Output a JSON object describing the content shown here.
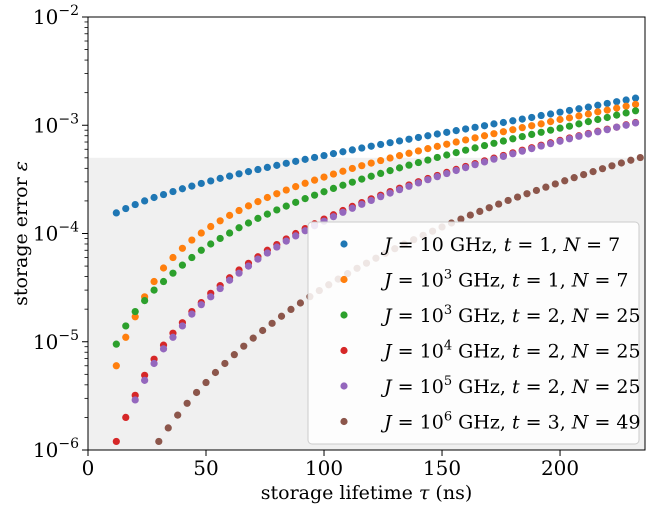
{
  "chart_data": {
    "type": "scatter",
    "xlabel": {
      "pre": "storage lifetime ",
      "sym": "τ",
      "post": " (ns)"
    },
    "ylabel": {
      "pre": "storage error ",
      "sym": "ε"
    },
    "xlim": [
      0,
      236
    ],
    "ylim": [
      1e-06,
      0.01
    ],
    "yscale": "log",
    "x_ticks": [
      0,
      50,
      100,
      150,
      200
    ],
    "y_ticks": [
      {
        "value": 1e-06,
        "base": "10",
        "exp": "−6"
      },
      {
        "value": 1e-05,
        "base": "10",
        "exp": "−5"
      },
      {
        "value": 0.0001,
        "base": "10",
        "exp": "−4"
      },
      {
        "value": 0.001,
        "base": "10",
        "exp": "−3"
      },
      {
        "value": 0.01,
        "base": "10",
        "exp": "−2"
      }
    ],
    "shaded_region": {
      "y_max": 0.0005,
      "color": "#f0f0f0"
    },
    "legend_position": "lower-right",
    "series": [
      {
        "label": {
          "J": "10",
          "Jexp": "",
          "t": "1",
          "N": "7"
        },
        "color": "#1f77b4",
        "x": [
          12,
          16,
          20,
          24,
          28,
          32,
          36,
          40,
          44,
          48,
          52,
          56,
          60,
          64,
          68,
          72,
          76,
          80,
          84,
          88,
          92,
          96,
          100,
          104,
          108,
          112,
          116,
          120,
          124,
          128,
          132,
          136,
          140,
          144,
          148,
          152,
          156,
          160,
          164,
          168,
          172,
          176,
          180,
          184,
          188,
          192,
          196,
          200,
          204,
          208,
          212,
          216,
          220,
          224,
          228,
          232
        ],
        "y": [
          0.000155,
          0.00017,
          0.000185,
          0.0002,
          0.000215,
          0.000229,
          0.000244,
          0.000259,
          0.000274,
          0.00029,
          0.000306,
          0.000323,
          0.000339,
          0.000356,
          0.000373,
          0.00039,
          0.000408,
          0.000426,
          0.000445,
          0.000464,
          0.000484,
          0.000504,
          0.000525,
          0.000547,
          0.000569,
          0.000592,
          0.000616,
          0.00064,
          0.000665,
          0.00069,
          0.000716,
          0.000743,
          0.000771,
          0.0008,
          0.00083,
          0.00086,
          0.000892,
          0.000924,
          0.000957,
          0.00099,
          0.00103,
          0.00106,
          0.0011,
          0.00114,
          0.00118,
          0.00123,
          0.00127,
          0.00132,
          0.00137,
          0.00142,
          0.00147,
          0.00153,
          0.00159,
          0.00165,
          0.00171,
          0.00178
        ]
      },
      {
        "label": {
          "J": "10",
          "Jexp": "3",
          "t": "1",
          "N": "7"
        },
        "color": "#ff7f0e",
        "x": [
          12,
          16,
          20,
          24,
          28,
          32,
          36,
          40,
          44,
          48,
          52,
          56,
          60,
          64,
          68,
          72,
          76,
          80,
          84,
          88,
          92,
          96,
          100,
          104,
          108,
          112,
          116,
          120,
          124,
          128,
          132,
          136,
          140,
          144,
          148,
          152,
          156,
          160,
          164,
          168,
          172,
          176,
          180,
          184,
          188,
          192,
          196,
          200,
          204,
          208,
          212,
          216,
          220,
          224,
          228,
          232
        ],
        "y": [
          6e-06,
          1.1e-05,
          1.7e-05,
          2.6e-05,
          3.6e-05,
          4.8e-05,
          6e-05,
          7.3e-05,
          8.7e-05,
          0.000101,
          0.000116,
          0.000131,
          0.000147,
          0.000163,
          0.00018,
          0.000197,
          0.000215,
          0.000233,
          0.000252,
          0.000271,
          0.000291,
          0.000311,
          0.000332,
          0.000354,
          0.000376,
          0.000399,
          0.000423,
          0.000447,
          0.000472,
          0.000498,
          0.000524,
          0.000551,
          0.000579,
          0.000608,
          0.000638,
          0.000668,
          0.0007,
          0.000732,
          0.000765,
          0.0008,
          0.000836,
          0.000872,
          0.00091,
          0.00095,
          0.00099,
          0.00103,
          0.00108,
          0.00113,
          0.00117,
          0.00122,
          0.00127,
          0.00133,
          0.00138,
          0.00144,
          0.0015,
          0.00156
        ]
      },
      {
        "label": {
          "J": "10",
          "Jexp": "3",
          "t": "2",
          "N": "25"
        },
        "color": "#2ca02c",
        "x": [
          12,
          16,
          20,
          24,
          28,
          32,
          36,
          40,
          44,
          48,
          52,
          56,
          60,
          64,
          68,
          72,
          76,
          80,
          84,
          88,
          92,
          96,
          100,
          104,
          108,
          112,
          116,
          120,
          124,
          128,
          132,
          136,
          140,
          144,
          148,
          152,
          156,
          160,
          164,
          168,
          172,
          176,
          180,
          184,
          188,
          192,
          196,
          200,
          204,
          208,
          212,
          216,
          220,
          224,
          228,
          232
        ],
        "y": [
          9.5e-06,
          1.4e-05,
          1.9e-05,
          2.4e-05,
          3e-05,
          3.6e-05,
          4.3e-05,
          5.1e-05,
          6e-05,
          7e-05,
          8e-05,
          9e-05,
          0.000101,
          0.000113,
          0.000125,
          0.000138,
          0.000151,
          0.000165,
          0.000179,
          0.000194,
          0.00021,
          0.000226,
          0.000243,
          0.000261,
          0.000279,
          0.000298,
          0.000318,
          0.000338,
          0.000359,
          0.000381,
          0.000404,
          0.000428,
          0.000452,
          0.000477,
          0.000504,
          0.000531,
          0.000559,
          0.000588,
          0.000618,
          0.000649,
          0.000681,
          0.000715,
          0.00075,
          0.000786,
          0.000823,
          0.000861,
          0.0009,
          0.00094,
          0.00098,
          0.00103,
          0.00108,
          0.00113,
          0.00118,
          0.00124,
          0.0013,
          0.00136
        ]
      },
      {
        "label": {
          "J": "10",
          "Jexp": "4",
          "t": "2",
          "N": "25"
        },
        "color": "#d62728",
        "x": [
          12,
          16,
          20,
          24,
          28,
          32,
          36,
          40,
          44,
          48,
          52,
          56,
          60,
          64,
          68,
          72,
          76,
          80,
          84,
          88,
          92,
          96,
          100,
          104,
          108,
          112,
          116,
          120,
          124,
          128,
          132,
          136,
          140,
          144,
          148,
          152,
          156,
          160,
          164,
          168,
          172,
          176,
          180,
          184,
          188,
          192,
          196,
          200,
          204,
          208,
          212,
          216,
          220,
          224,
          228,
          232
        ],
        "y": [
          1.2e-06,
          2e-06,
          3.2e-06,
          4.9e-06,
          6.9e-06,
          9.3e-06,
          1.2e-05,
          1.5e-05,
          1.9e-05,
          2.3e-05,
          2.8e-05,
          3.3e-05,
          3.9e-05,
          4.6e-05,
          5.3e-05,
          6.1e-05,
          7e-05,
          7.9e-05,
          8.9e-05,
          0.0001,
          0.000111,
          0.000123,
          0.000136,
          0.000149,
          0.000163,
          0.000178,
          0.000193,
          0.000209,
          0.000226,
          0.000244,
          0.000262,
          0.000281,
          0.000301,
          0.000322,
          0.000344,
          0.000367,
          0.000391,
          0.000416,
          0.000442,
          0.000469,
          0.000497,
          0.000526,
          0.000556,
          0.000588,
          0.00062,
          0.000654,
          0.000689,
          0.000725,
          0.000763,
          0.0008,
          0.00084,
          0.00088,
          0.00092,
          0.00096,
          0.00101,
          0.00106
        ]
      },
      {
        "label": {
          "J": "10",
          "Jexp": "5",
          "t": "2",
          "N": "25"
        },
        "color": "#9467bd",
        "x": [
          20,
          24,
          28,
          32,
          36,
          40,
          44,
          48,
          52,
          56,
          60,
          64,
          68,
          72,
          76,
          80,
          84,
          88,
          92,
          96,
          100,
          104,
          108,
          112,
          116,
          120,
          124,
          128,
          132,
          136,
          140,
          144,
          148,
          152,
          156,
          160,
          164,
          168,
          172,
          176,
          180,
          184,
          188,
          192,
          196,
          200,
          204,
          208,
          212,
          216,
          220,
          224,
          228,
          232
        ],
        "y": [
          2.9e-06,
          4.4e-06,
          6.3e-06,
          8.6e-06,
          1.1e-05,
          1.4e-05,
          1.8e-05,
          2.2e-05,
          2.6e-05,
          3.1e-05,
          3.7e-05,
          4.3e-05,
          5e-05,
          5.8e-05,
          6.6e-05,
          7.5e-05,
          8.5e-05,
          9.5e-05,
          0.000106,
          0.000118,
          0.00013,
          0.000143,
          0.000157,
          0.000171,
          0.000186,
          0.000202,
          0.000219,
          0.000236,
          0.000254,
          0.000273,
          0.000293,
          0.000314,
          0.000335,
          0.000358,
          0.000382,
          0.000406,
          0.000432,
          0.000458,
          0.000486,
          0.000515,
          0.000545,
          0.000576,
          0.000608,
          0.000642,
          0.000676,
          0.000712,
          0.00075,
          0.00079,
          0.00083,
          0.00087,
          0.00091,
          0.00096,
          0.001,
          0.00105
        ]
      },
      {
        "label": {
          "J": "10",
          "Jexp": "6",
          "t": "3",
          "N": "49"
        },
        "color": "#8c564b",
        "x": [
          30,
          34,
          38,
          42,
          46,
          50,
          54,
          58,
          62,
          66,
          70,
          74,
          78,
          82,
          86,
          90,
          94,
          98,
          102,
          106,
          110,
          114,
          118,
          122,
          126,
          130,
          134,
          138,
          142,
          146,
          150,
          154,
          158,
          162,
          166,
          170,
          174,
          178,
          182,
          186,
          190,
          194,
          198,
          202,
          206,
          210,
          214,
          218,
          222,
          226,
          230,
          234
        ],
        "y": [
          1.2e-06,
          1.6e-06,
          2.1e-06,
          2.7e-06,
          3.4e-06,
          4.2e-06,
          5.2e-06,
          6.3e-06,
          7.6e-06,
          9.1e-06,
          1.08e-05,
          1.27e-05,
          1.48e-05,
          1.72e-05,
          1.99e-05,
          2.28e-05,
          2.61e-05,
          2.97e-05,
          3.36e-05,
          3.79e-05,
          4.26e-05,
          4.77e-05,
          5.32e-05,
          5.91e-05,
          6.55e-05,
          7.24e-05,
          7.98e-05,
          8.77e-05,
          9.62e-05,
          0.000105,
          0.000115,
          0.000125,
          0.000136,
          0.000148,
          0.00016,
          0.000173,
          0.000187,
          0.000202,
          0.000217,
          0.000233,
          0.00025,
          0.000268,
          0.000287,
          0.000307,
          0.000328,
          0.00035,
          0.000373,
          0.000397,
          0.000422,
          0.000448,
          0.000475,
          0.000503
        ]
      }
    ]
  }
}
